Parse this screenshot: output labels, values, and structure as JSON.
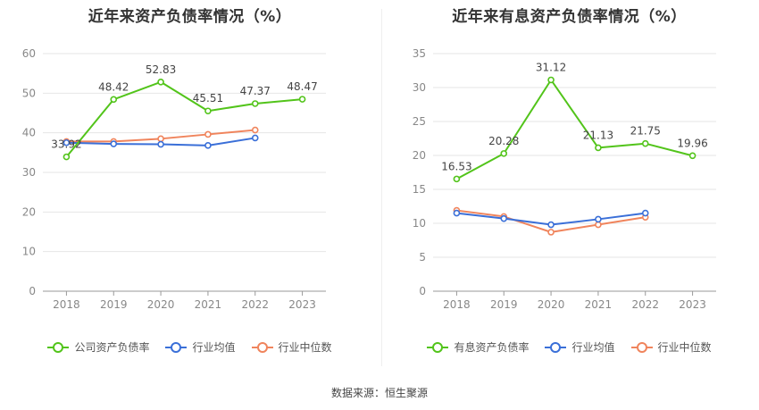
{
  "charts": [
    {
      "title": "近年来资产负债率情况（%）"
    },
    {
      "title": "近年来有息资产负债率情况（%）"
    }
  ],
  "source": "数据来源：恒生聚源",
  "chart_data": [
    {
      "type": "line",
      "title": "近年来资产负债率情况（%）",
      "categories": [
        "2018",
        "2019",
        "2020",
        "2021",
        "2022",
        "2023"
      ],
      "ylim": [
        0,
        60
      ],
      "yticks": [
        0,
        10,
        20,
        30,
        40,
        50,
        60
      ],
      "grid": true,
      "legend_position": "bottom",
      "series": [
        {
          "name": "公司资产负债率",
          "color": "#52c41a",
          "values": [
            33.92,
            48.42,
            52.83,
            45.51,
            47.37,
            48.47
          ],
          "labels": [
            "33.92",
            "48.42",
            "52.83",
            "45.51",
            "47.37",
            "48.47"
          ]
        },
        {
          "name": "行业均值",
          "color": "#3a6fd8",
          "values": [
            37.5,
            37.2,
            37.1,
            36.8,
            38.7,
            null
          ],
          "labels": null
        },
        {
          "name": "行业中位数",
          "color": "#f0845c",
          "values": [
            37.8,
            37.8,
            38.5,
            39.6,
            40.7,
            null
          ],
          "labels": null
        }
      ]
    },
    {
      "type": "line",
      "title": "近年来有息资产负债率情况（%）",
      "categories": [
        "2018",
        "2019",
        "2020",
        "2021",
        "2022",
        "2023"
      ],
      "ylim": [
        0,
        35
      ],
      "yticks": [
        0,
        5,
        10,
        15,
        20,
        25,
        30,
        35
      ],
      "grid": true,
      "legend_position": "bottom",
      "series": [
        {
          "name": "有息资产负债率",
          "color": "#52c41a",
          "values": [
            16.53,
            20.28,
            31.12,
            21.13,
            21.75,
            19.96
          ],
          "labels": [
            "16.53",
            "20.28",
            "31.12",
            "21.13",
            "21.75",
            "19.96"
          ]
        },
        {
          "name": "行业均值",
          "color": "#3a6fd8",
          "values": [
            11.5,
            10.7,
            9.8,
            10.6,
            11.5,
            null
          ],
          "labels": null
        },
        {
          "name": "行业中位数",
          "color": "#f0845c",
          "values": [
            11.9,
            11.0,
            8.7,
            9.8,
            10.9,
            null
          ],
          "labels": null
        }
      ]
    }
  ]
}
